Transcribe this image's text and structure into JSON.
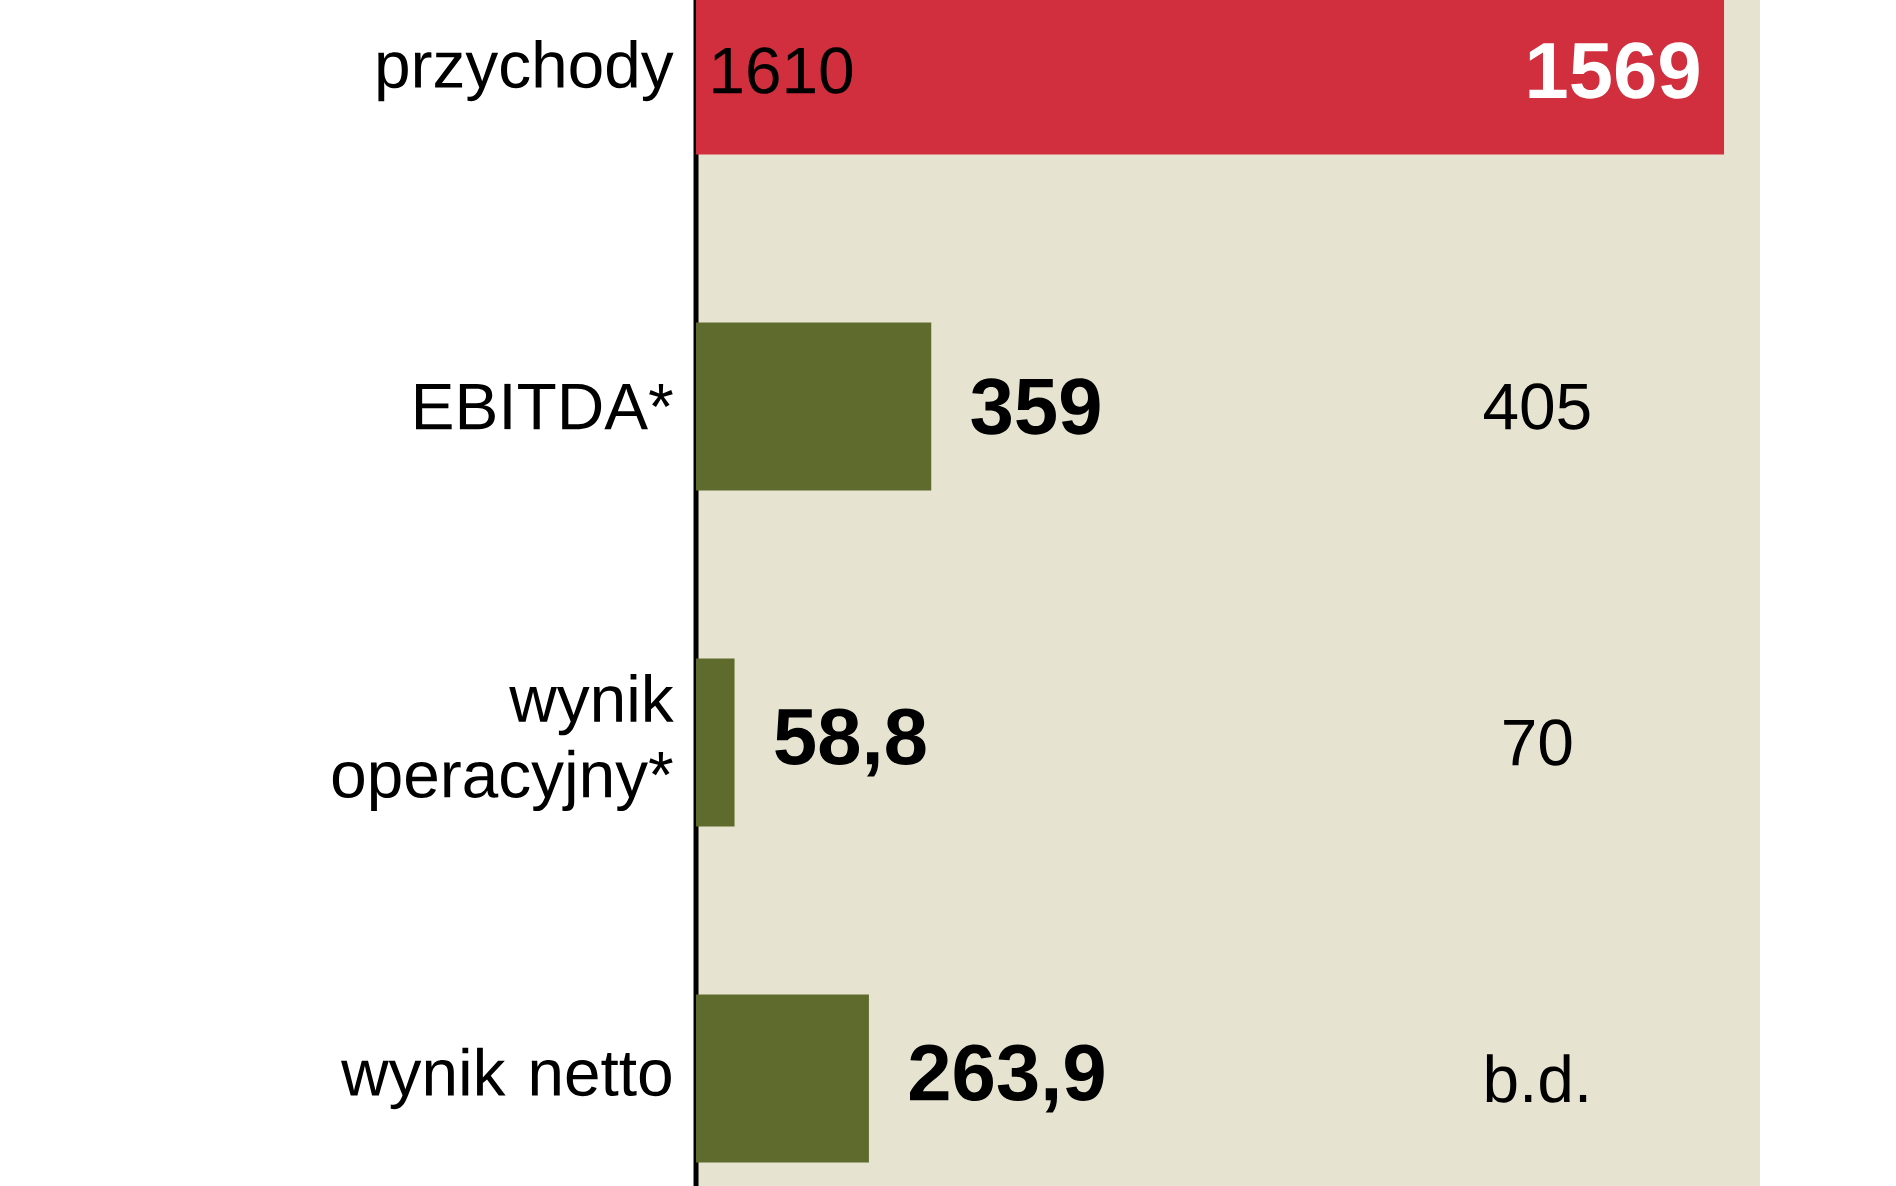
{
  "chart_data": {
    "type": "bar",
    "orientation": "horizontal",
    "categories": [
      "przychody",
      "EBITDA*",
      "wynik operacyjny*",
      "wynik netto"
    ],
    "values": [
      1569,
      359,
      58.8,
      263.9
    ],
    "colors": [
      "#d22f3e",
      "#5f6b2c",
      "#5f6b2c",
      "#5f6b2c"
    ],
    "value_labels": [
      "1569",
      "359",
      "58,8",
      "263,9"
    ],
    "annotations": [
      "1610",
      "405",
      "70",
      "b.d."
    ]
  }
}
